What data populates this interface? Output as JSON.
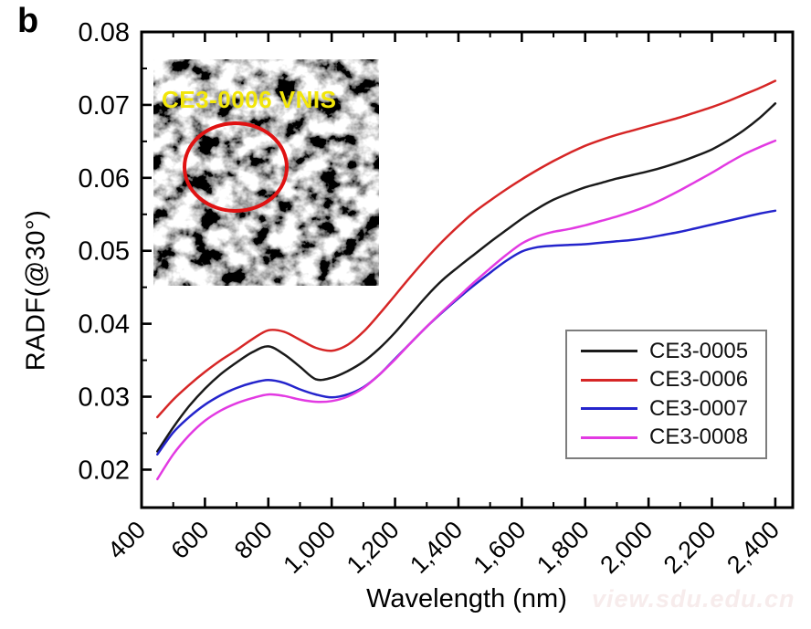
{
  "figure": {
    "panel_label": "b",
    "watermark": "view.sdu.edu.cn",
    "background_color": "#ffffff",
    "axis_color": "#000000"
  },
  "inset": {
    "label": "CE3-0006 VNIS",
    "label_color": "#f2e60a",
    "circle_color": "#e01212",
    "description_icon": "lunar-surface-photo"
  },
  "chart_data": {
    "type": "line",
    "title": "",
    "xlabel": "Wavelength (nm)",
    "ylabel": "RADF(@30°)",
    "x_range": [
      400,
      2455
    ],
    "y_range": [
      0.0148,
      0.08
    ],
    "grid": false,
    "legend_position": "bottom-right",
    "x_major_ticks": [
      {
        "value": 400,
        "label": "400"
      },
      {
        "value": 600,
        "label": "600"
      },
      {
        "value": 800,
        "label": "800"
      },
      {
        "value": 1000,
        "label": "1,000"
      },
      {
        "value": 1200,
        "label": "1,200"
      },
      {
        "value": 1400,
        "label": "1,400"
      },
      {
        "value": 1600,
        "label": "1,600"
      },
      {
        "value": 1800,
        "label": "1,800"
      },
      {
        "value": 2000,
        "label": "2,000"
      },
      {
        "value": 2200,
        "label": "2,200"
      },
      {
        "value": 2400,
        "label": "2,400"
      }
    ],
    "x_minor_ticks": [
      500,
      700,
      900,
      1100,
      1300,
      1500,
      1700,
      1900,
      2100,
      2300
    ],
    "y_major_ticks": [
      {
        "value": 0.02,
        "label": "0.02"
      },
      {
        "value": 0.03,
        "label": "0.03"
      },
      {
        "value": 0.04,
        "label": "0.04"
      },
      {
        "value": 0.05,
        "label": "0.05"
      },
      {
        "value": 0.06,
        "label": "0.06"
      },
      {
        "value": 0.07,
        "label": "0.07"
      },
      {
        "value": 0.08,
        "label": "0.08"
      }
    ],
    "y_minor_ticks": [
      0.025,
      0.035,
      0.045,
      0.055,
      0.065,
      0.075
    ],
    "wavelengths_nm": [
      450,
      500,
      550,
      600,
      650,
      700,
      750,
      800,
      850,
      900,
      950,
      1000,
      1050,
      1100,
      1150,
      1200,
      1250,
      1300,
      1350,
      1400,
      1450,
      1500,
      1550,
      1600,
      1650,
      1700,
      1750,
      1800,
      1850,
      1900,
      1950,
      2000,
      2050,
      2100,
      2150,
      2200,
      2250,
      2300,
      2350,
      2400
    ],
    "series": [
      {
        "name": "CE3-0005",
        "color": "#1a1a1a",
        "values": [
          0.0225,
          0.0258,
          0.0287,
          0.0311,
          0.0331,
          0.0347,
          0.0361,
          0.0369,
          0.0358,
          0.0341,
          0.0324,
          0.0326,
          0.0335,
          0.0348,
          0.0366,
          0.0388,
          0.0413,
          0.0438,
          0.046,
          0.0478,
          0.0495,
          0.0512,
          0.0528,
          0.0544,
          0.0558,
          0.057,
          0.0579,
          0.0587,
          0.0593,
          0.0599,
          0.0604,
          0.0609,
          0.0615,
          0.0622,
          0.063,
          0.0639,
          0.0651,
          0.0665,
          0.0682,
          0.0702
        ]
      },
      {
        "name": "CE3-0006",
        "color": "#d62626",
        "values": [
          0.0272,
          0.0296,
          0.0316,
          0.0334,
          0.035,
          0.0364,
          0.0379,
          0.0391,
          0.0389,
          0.0378,
          0.0367,
          0.0363,
          0.0371,
          0.0389,
          0.0413,
          0.0439,
          0.0465,
          0.049,
          0.0513,
          0.0534,
          0.0553,
          0.0569,
          0.0584,
          0.0598,
          0.0611,
          0.0623,
          0.0634,
          0.0644,
          0.0652,
          0.0659,
          0.0665,
          0.0671,
          0.0677,
          0.0683,
          0.069,
          0.0697,
          0.0705,
          0.0714,
          0.0723,
          0.0733
        ]
      },
      {
        "name": "CE3-0007",
        "color": "#2424cc",
        "values": [
          0.0221,
          0.0251,
          0.0272,
          0.0289,
          0.0302,
          0.0312,
          0.0319,
          0.0323,
          0.0319,
          0.031,
          0.0303,
          0.0299,
          0.0303,
          0.0313,
          0.033,
          0.0352,
          0.0374,
          0.0396,
          0.0416,
          0.0435,
          0.0453,
          0.047,
          0.0486,
          0.0499,
          0.0505,
          0.0507,
          0.0508,
          0.0509,
          0.0511,
          0.0513,
          0.0515,
          0.0518,
          0.0522,
          0.0526,
          0.0531,
          0.0536,
          0.0541,
          0.0546,
          0.0551,
          0.0555
        ]
      },
      {
        "name": "CE3-0008",
        "color": "#e23ae2",
        "values": [
          0.0187,
          0.0221,
          0.0247,
          0.0267,
          0.0281,
          0.0291,
          0.0298,
          0.0303,
          0.0301,
          0.0296,
          0.0293,
          0.0294,
          0.03,
          0.0312,
          0.033,
          0.0351,
          0.0374,
          0.0396,
          0.0417,
          0.0437,
          0.0457,
          0.0476,
          0.0494,
          0.051,
          0.052,
          0.0526,
          0.053,
          0.0535,
          0.0541,
          0.0547,
          0.0554,
          0.0562,
          0.0572,
          0.0583,
          0.0595,
          0.0607,
          0.062,
          0.0632,
          0.0642,
          0.0651
        ]
      }
    ]
  }
}
